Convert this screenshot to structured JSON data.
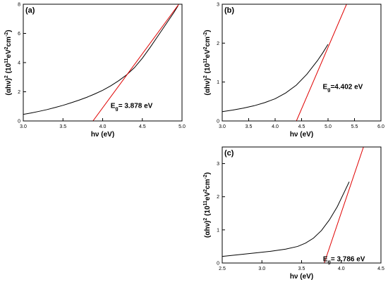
{
  "chart_data": [
    {
      "type": "line",
      "panel_label": "(a)",
      "xlabel_main": "hν (eV)",
      "ylabel_main": "(αhν)",
      "ylabel_sup1": "2",
      "ylabel_mid": " (10",
      "ylabel_sup2": "11",
      "ylabel_mid2": "eV",
      "ylabel_sup3": "2",
      "ylabel_mid3": "cm",
      "ylabel_sup4": "-2",
      "ylabel_end": ")",
      "xlim": [
        3.0,
        5.0
      ],
      "ylim": [
        0,
        8
      ],
      "xticks": [
        3.0,
        3.5,
        4.0,
        4.5,
        5.0
      ],
      "xtick_labels": [
        "3.0",
        "3.5",
        "4.0",
        "4.5",
        "5.0"
      ],
      "yticks": [
        0,
        2,
        4,
        6,
        8
      ],
      "ytick_labels": [
        "0",
        "2",
        "4",
        "6",
        "8"
      ],
      "series": [
        {
          "color": "#000000",
          "x": [
            3.0,
            3.1,
            3.2,
            3.3,
            3.4,
            3.5,
            3.6,
            3.7,
            3.8,
            3.9,
            4.0,
            4.1,
            4.2,
            4.3,
            4.4,
            4.5,
            4.6,
            4.7,
            4.8,
            4.9,
            4.95
          ],
          "y": [
            0.45,
            0.55,
            0.66,
            0.78,
            0.92,
            1.07,
            1.24,
            1.42,
            1.62,
            1.85,
            2.1,
            2.4,
            2.75,
            3.15,
            3.65,
            4.3,
            5.05,
            5.85,
            6.65,
            7.45,
            7.9
          ]
        }
      ],
      "fit_line": {
        "color": "#e00000",
        "x": [
          3.878,
          4.96
        ],
        "y": [
          0,
          8.0
        ]
      },
      "annotation": {
        "text_main": "E",
        "text_sub": "g",
        "text_rest": "= 3.878 eV",
        "x": 4.1,
        "y": 0.9
      }
    },
    {
      "type": "line",
      "panel_label": "(b)",
      "xlabel_main": "hν (eV)",
      "ylabel_main": "(αhν)",
      "ylabel_sup1": "2",
      "ylabel_mid": " (10",
      "ylabel_sup2": "11",
      "ylabel_mid2": "eV",
      "ylabel_sup3": "2",
      "ylabel_mid3": "cm",
      "ylabel_sup4": "-2",
      "ylabel_end": ")",
      "xlim": [
        3.0,
        6.0
      ],
      "ylim": [
        0,
        3
      ],
      "xticks": [
        3.0,
        3.5,
        4.0,
        4.5,
        5.0,
        5.5,
        6.0
      ],
      "xtick_labels": [
        "3.0",
        "3.5",
        "4.0",
        "4.5",
        "5.0",
        "5.5",
        "6.0"
      ],
      "yticks": [
        0,
        1,
        2,
        3
      ],
      "ytick_labels": [
        "0",
        "1",
        "2",
        "3"
      ],
      "series": [
        {
          "color": "#000000",
          "x": [
            3.0,
            3.2,
            3.4,
            3.6,
            3.8,
            4.0,
            4.2,
            4.4,
            4.6,
            4.8,
            4.9,
            5.0
          ],
          "y": [
            0.24,
            0.28,
            0.33,
            0.39,
            0.47,
            0.57,
            0.72,
            0.92,
            1.2,
            1.55,
            1.75,
            1.97
          ]
        }
      ],
      "fit_line": {
        "color": "#e00000",
        "x": [
          4.402,
          5.35
        ],
        "y": [
          0,
          3.0
        ]
      },
      "annotation": {
        "text_main": "E",
        "text_sub": "g",
        "text_rest": "=4.402 eV",
        "x": 4.9,
        "y": 0.82
      }
    },
    {
      "type": "line",
      "panel_label": "(c)",
      "xlabel_main": "hν (eV)",
      "ylabel_main": "(αhν)",
      "ylabel_sup1": "2",
      "ylabel_mid": " (10",
      "ylabel_sup2": "11",
      "ylabel_mid2": "eV",
      "ylabel_sup3": "2",
      "ylabel_mid3": "cm",
      "ylabel_sup4": "-2",
      "ylabel_end": ")",
      "xlim": [
        2.5,
        4.5
      ],
      "ylim": [
        0,
        3.5
      ],
      "xticks": [
        2.5,
        3.0,
        3.5,
        4.0,
        4.5
      ],
      "xtick_labels": [
        "2.5",
        "3.0",
        "3.5",
        "4.0",
        "4.5"
      ],
      "yticks": [
        0,
        1,
        2,
        3
      ],
      "ytick_labels": [
        "0",
        "1",
        "2",
        "3"
      ],
      "series": [
        {
          "color": "#000000",
          "x": [
            2.5,
            2.7,
            2.9,
            3.1,
            3.3,
            3.45,
            3.55,
            3.65,
            3.75,
            3.85,
            3.95,
            4.05,
            4.1
          ],
          "y": [
            0.2,
            0.25,
            0.3,
            0.35,
            0.42,
            0.5,
            0.6,
            0.75,
            0.98,
            1.3,
            1.7,
            2.2,
            2.45
          ]
        }
      ],
      "fit_line": {
        "color": "#e00000",
        "x": [
          3.786,
          4.28
        ],
        "y": [
          0,
          3.5
        ]
      },
      "annotation": {
        "text_main": "E",
        "text_sub": "g",
        "text_rest": "= 3.786 eV",
        "x": 3.77,
        "y": 0.05
      }
    }
  ]
}
